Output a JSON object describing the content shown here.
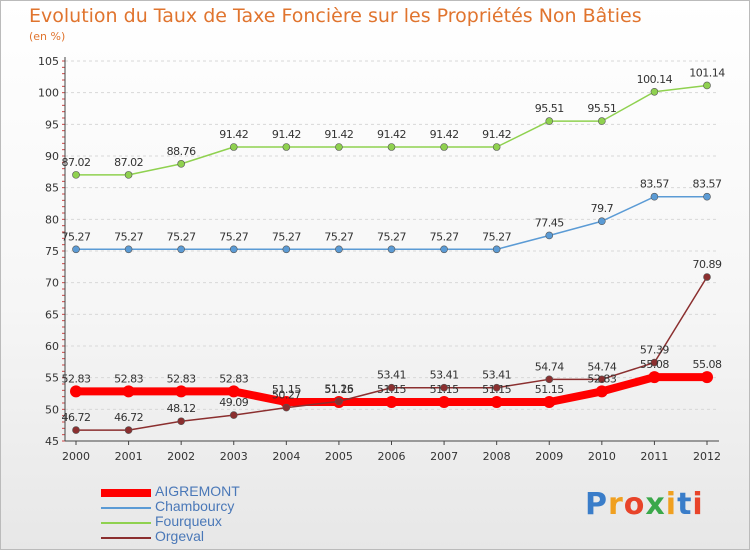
{
  "header": {
    "title": "Evolution du Taux de Taxe Foncière sur les Propriétés Non Bâties",
    "unit": "(en %)"
  },
  "logo": {
    "letters": [
      "P",
      "r",
      "o",
      "x",
      "i",
      "t",
      "i"
    ]
  },
  "chart_data": {
    "type": "line",
    "title": "Evolution du Taux de Taxe Foncière sur les Propriétés Non Bâties",
    "ylabel": "(en %)",
    "xlabel": "",
    "x": [
      "2000",
      "2001",
      "2002",
      "2003",
      "2004",
      "2005",
      "2006",
      "2007",
      "2008",
      "2009",
      "2010",
      "2011",
      "2012"
    ],
    "yticks": [
      "45",
      "50",
      "55",
      "60",
      "65",
      "70",
      "75",
      "80",
      "85",
      "90",
      "95",
      "100",
      "105"
    ],
    "ylim": [
      45,
      105
    ],
    "grid": "horizontal",
    "legend_position": "bottom-left",
    "series": [
      {
        "name": "AIGREMONT",
        "color": "#ff0000",
        "values": [
          52.83,
          52.83,
          52.83,
          52.83,
          51.15,
          51.15,
          51.15,
          51.15,
          51.15,
          51.15,
          52.83,
          55.08,
          55.08
        ],
        "labels": [
          "52.83",
          "52.83",
          "52.83",
          "52.83",
          "51.15",
          "51.15",
          "51.15",
          "51.15",
          "51.15",
          "51.15",
          "52.83",
          "55.08",
          "55.08"
        ]
      },
      {
        "name": "Chambourcy",
        "color": "#5b9bd5",
        "values": [
          75.27,
          75.27,
          75.27,
          75.27,
          75.27,
          75.27,
          75.27,
          75.27,
          75.27,
          77.45,
          79.7,
          83.57,
          83.57
        ],
        "labels": [
          "75.27",
          "75.27",
          "75.27",
          "75.27",
          "75.27",
          "75.27",
          "75.27",
          "75.27",
          "75.27",
          "77.45",
          "79.7",
          "83.57",
          "83.57"
        ]
      },
      {
        "name": "Fourqueux",
        "color": "#8fd14f",
        "values": [
          87.02,
          87.02,
          88.76,
          91.42,
          91.42,
          91.42,
          91.42,
          91.42,
          91.42,
          95.51,
          95.51,
          100.14,
          101.14
        ],
        "labels": [
          "87.02",
          "87.02",
          "88.76",
          "91.42",
          "91.42",
          "91.42",
          "91.42",
          "91.42",
          "91.42",
          "95.51",
          "95.51",
          "100.14",
          "101.14"
        ]
      },
      {
        "name": "Orgeval",
        "color": "#8b2f2f",
        "values": [
          46.72,
          46.72,
          48.12,
          49.09,
          50.27,
          51.26,
          53.41,
          53.41,
          53.41,
          54.74,
          54.74,
          57.39,
          70.89
        ],
        "labels": [
          "46.72",
          "46.72",
          "48.12",
          "49.09",
          "50.27",
          "51.26",
          "53.41",
          "53.41",
          "53.41",
          "54.74",
          "54.74",
          "57.39",
          "70.89"
        ]
      }
    ]
  }
}
